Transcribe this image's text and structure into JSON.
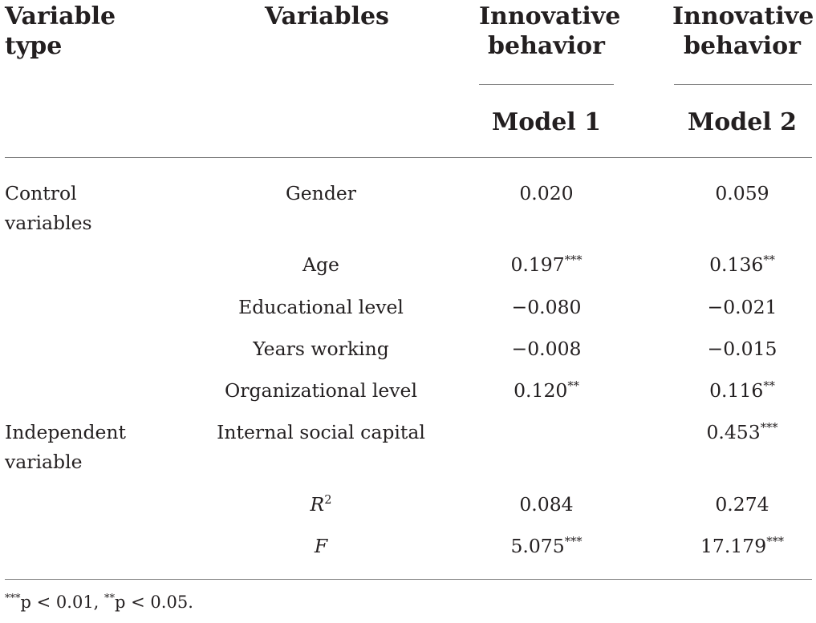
{
  "headers": {
    "variable_type": [
      "Variable",
      "type"
    ],
    "variables": "Variables",
    "outcome_1": [
      "Innovative",
      "behavior"
    ],
    "outcome_2": [
      "Innovative",
      "behavior"
    ],
    "model_1": "Model 1",
    "model_2": "Model 2"
  },
  "groups": [
    {
      "label": [
        "Control",
        "variables"
      ]
    },
    {
      "label": [
        "Independent",
        "variable"
      ]
    }
  ],
  "rows": [
    {
      "variable": "Gender",
      "m1": "0.020",
      "m2": "0.059"
    },
    {
      "variable": "Age",
      "m1": "0.197",
      "m1_sig": "***",
      "m2": "0.136",
      "m2_sig": "**"
    },
    {
      "variable": "Educational level",
      "m1": "−0.080",
      "m2": "−0.021"
    },
    {
      "variable": "Years working",
      "m1": "−0.008",
      "m2": "−0.015"
    },
    {
      "variable": "Organizational level",
      "m1": "0.120",
      "m1_sig": "**",
      "m2": "0.116",
      "m2_sig": "**"
    },
    {
      "variable": "Internal social capital",
      "m1": "",
      "m2": "0.453",
      "m2_sig": "***"
    }
  ],
  "stats": [
    {
      "symbol": "R",
      "exponent": "2",
      "m1": "0.084",
      "m2": "0.274"
    },
    {
      "symbol": "F",
      "m1": "5.075",
      "m1_sig": "***",
      "m2": "17.179",
      "m2_sig": "***"
    }
  ],
  "footnote": {
    "sig1_mark": "***",
    "sig1_text": "p < 0.01, ",
    "sig2_mark": "**",
    "sig2_text": "p < 0.05."
  }
}
